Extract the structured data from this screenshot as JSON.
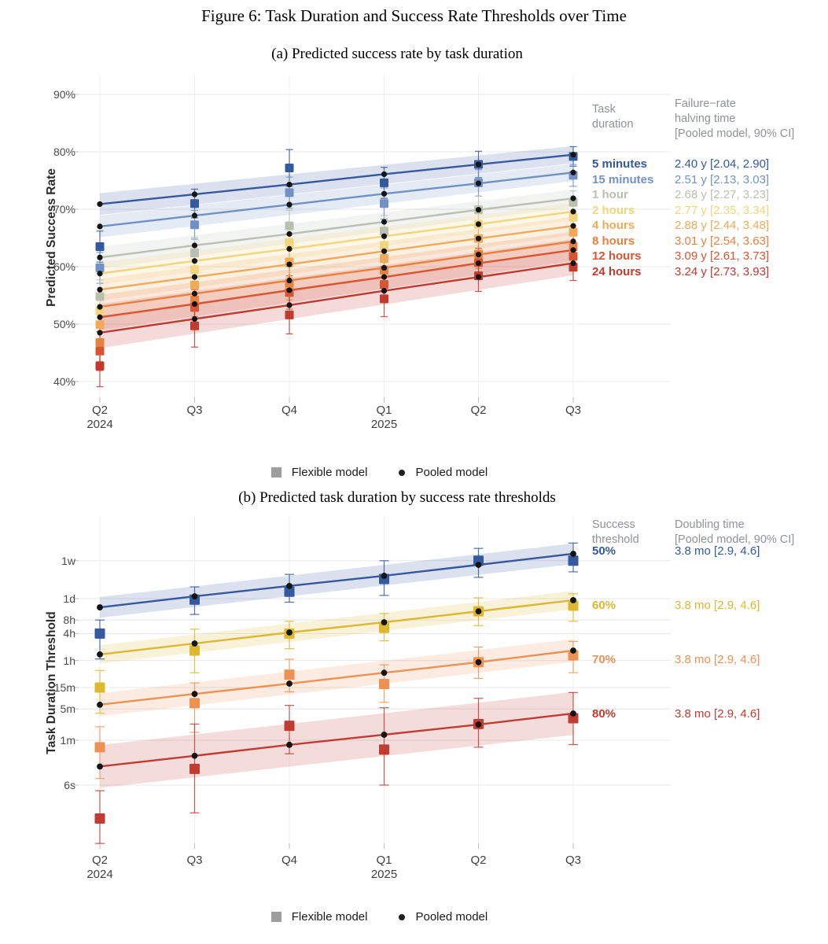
{
  "figure": {
    "title": "Figure 6: Task Duration and Success Rate Thresholds over Time"
  },
  "models_legend": [
    {
      "label": "Flexible model",
      "marker": "square",
      "color": "#9e9e9e"
    },
    {
      "label": "Pooled model",
      "marker": "dot",
      "color": "#1f1f1f"
    }
  ],
  "chart_data": [
    {
      "type": "line",
      "title": "(a) Predicted success rate by task duration",
      "ylabel": "Predicted Success Rate",
      "scale": "linear",
      "grid": true,
      "legend_position": "right",
      "x_ticks": [
        {
          "label": "Q2",
          "year": "2024"
        },
        {
          "label": "Q3",
          "year": ""
        },
        {
          "label": "Q4",
          "year": ""
        },
        {
          "label": "Q1",
          "year": "2025"
        },
        {
          "label": "Q2",
          "year": ""
        },
        {
          "label": "Q3",
          "year": ""
        }
      ],
      "y_ticks": [
        {
          "label": "90%",
          "value": 90
        },
        {
          "label": "80%",
          "value": 80
        },
        {
          "label": "70%",
          "value": 70
        },
        {
          "label": "60%",
          "value": 60
        },
        {
          "label": "50%",
          "value": 50
        },
        {
          "label": "40%",
          "value": 40
        }
      ],
      "ylim": [
        38,
        92
      ],
      "legend_title_lines": [
        "Task",
        "duration"
      ],
      "value_title_lines": [
        "Failure−rate",
        "halving time",
        "[Pooled model, 90% CI]"
      ],
      "series": [
        {
          "label": "5 minutes",
          "ci_text": "2.40 y [2.04, 2.90]",
          "color": "#35599e",
          "pooled": [
            70.9,
            72.6,
            74.3,
            76.1,
            77.8,
            79.5
          ],
          "flexible": [
            63.5,
            71.0,
            77.2,
            74.6,
            77.8,
            79.2
          ],
          "flex_err": [
            2.7,
            2.5,
            3.2,
            2.7,
            2.3,
            1.7
          ],
          "band_hw": [
            1.9,
            1.5
          ]
        },
        {
          "label": "15 minutes",
          "ci_text": "2.51 y [2.13, 3.03]",
          "color": "#7191c6",
          "pooled": [
            67.0,
            68.9,
            70.8,
            72.7,
            74.5,
            76.4
          ],
          "flexible": [
            59.8,
            67.3,
            72.9,
            71.0,
            74.6,
            75.9
          ],
          "flex_err": [
            2.7,
            2.5,
            2.7,
            2.7,
            2.3,
            1.9
          ],
          "band_hw": [
            1.9,
            1.5
          ]
        },
        {
          "label": "1 hour",
          "ci_text": "2.68 y [2.27, 3.23]",
          "color": "#b9c0b2",
          "pooled": [
            61.6,
            63.7,
            65.7,
            67.8,
            69.9,
            71.9
          ],
          "flexible": [
            54.8,
            62.4,
            67.1,
            66.2,
            69.9,
            71.2
          ],
          "flex_err": [
            2.9,
            2.7,
            2.7,
            2.7,
            2.4,
            2.0
          ],
          "band_hw": [
            1.9,
            1.5
          ]
        },
        {
          "label": "2 hours",
          "ci_text": "2.77 y [2.35, 3.34]",
          "color": "#f2d57c",
          "pooled": [
            58.8,
            61.0,
            63.1,
            65.3,
            67.4,
            69.6
          ],
          "flexible": [
            52.3,
            59.5,
            64.2,
            63.7,
            67.4,
            68.6
          ],
          "flex_err": [
            2.9,
            2.7,
            2.7,
            2.7,
            2.4,
            2.0
          ],
          "band_hw": [
            1.9,
            1.5
          ]
        },
        {
          "label": "4 hours",
          "ci_text": "2.88 y [2.44, 3.48]",
          "color": "#f0aa5a",
          "pooled": [
            56.0,
            58.2,
            60.4,
            62.7,
            64.9,
            67.1
          ],
          "flexible": [
            49.9,
            56.8,
            60.8,
            61.4,
            64.9,
            66.0
          ],
          "flex_err": [
            3.1,
            2.9,
            2.7,
            2.7,
            2.4,
            2.0
          ],
          "band_hw": [
            1.9,
            1.6
          ]
        },
        {
          "label": "8 hours",
          "ci_text": "3.01 y [2.54, 3.63]",
          "color": "#e8813f",
          "pooled": [
            53.0,
            55.3,
            57.6,
            59.8,
            62.1,
            64.4
          ],
          "flexible": [
            46.8,
            54.2,
            57.1,
            59.4,
            62.2,
            63.5
          ],
          "flex_err": [
            3.3,
            2.9,
            2.9,
            2.7,
            2.5,
            2.1
          ],
          "band_hw": [
            2.1,
            1.7
          ]
        },
        {
          "label": "12 hours",
          "ci_text": "3.09 y [2.61, 3.73]",
          "color": "#d65535",
          "pooled": [
            51.2,
            53.5,
            55.9,
            58.2,
            60.6,
            62.9
          ],
          "flexible": [
            45.3,
            52.9,
            55.5,
            56.9,
            60.7,
            61.8
          ],
          "flex_err": [
            3.4,
            3.1,
            2.9,
            2.8,
            2.5,
            2.2
          ],
          "band_hw": [
            2.3,
            1.9
          ]
        },
        {
          "label": "24 hours",
          "ci_text": "3.24 y [2.73, 3.93]",
          "color": "#c03a2e",
          "pooled": [
            48.5,
            50.9,
            53.3,
            55.8,
            58.2,
            60.6
          ],
          "flexible": [
            42.7,
            49.7,
            51.6,
            54.4,
            58.4,
            59.9
          ],
          "flex_err": [
            3.6,
            3.7,
            3.3,
            3.1,
            2.7,
            2.3
          ],
          "band_hw": [
            2.7,
            2.1
          ]
        }
      ]
    },
    {
      "type": "line",
      "title": "(b) Predicted task duration by success rate thresholds",
      "ylabel": "Task Duration Threshold",
      "scale": "log-time",
      "grid": true,
      "legend_position": "right",
      "x_ticks": [
        {
          "label": "Q2",
          "year": "2024"
        },
        {
          "label": "Q3",
          "year": ""
        },
        {
          "label": "Q4",
          "year": ""
        },
        {
          "label": "Q1",
          "year": "2025"
        },
        {
          "label": "Q2",
          "year": ""
        },
        {
          "label": "Q3",
          "year": ""
        }
      ],
      "y_ticks": [
        {
          "label": "1w",
          "minutes": 10080
        },
        {
          "label": "1d",
          "minutes": 1440
        },
        {
          "label": "8h",
          "minutes": 480
        },
        {
          "label": "4h",
          "minutes": 240
        },
        {
          "label": "1h",
          "minutes": 60
        },
        {
          "label": "15m",
          "minutes": 15
        },
        {
          "label": "5m",
          "minutes": 5
        },
        {
          "label": "1m",
          "minutes": 1
        },
        {
          "label": "6s",
          "minutes": 0.1
        }
      ],
      "legend_title_lines": [
        "Success",
        "threshold"
      ],
      "value_title_lines": [
        "Doubling time",
        "[Pooled model, 90% CI]"
      ],
      "series": [
        {
          "label": "50%",
          "ci_text": "3.8 mo [2.9, 4.6]",
          "color": "#35599e",
          "pooled_minutes": [
            920,
            1620,
            2760,
            4650,
            8170,
            14400
          ],
          "flexible_minutes": [
            240,
            1370,
            2050,
            3940,
            10080,
            10080
          ],
          "flex_err_minutes": [
            [
              65,
              480
            ],
            [
              640,
              2630
            ],
            [
              1200,
              5000
            ],
            [
              1700,
              10080
            ],
            [
              4300,
              19000
            ],
            [
              5700,
              25000
            ]
          ],
          "band_factor": 1.7
        },
        {
          "label": "60%",
          "ci_text": "3.8 mo [2.9, 4.6]",
          "color": "#dcb82e",
          "pooled_minutes": [
            82,
            144,
            253,
            427,
            750,
            1330
          ],
          "flexible_minutes": [
            15,
            100,
            240,
            320,
            750,
            1000
          ],
          "flex_err_minutes": [
            [
              4,
              36
            ],
            [
              32,
              300
            ],
            [
              110,
              450
            ],
            [
              165,
              670
            ],
            [
              360,
              1500
            ],
            [
              450,
              1850
            ]
          ],
          "band_factor": 1.6
        },
        {
          "label": "70%",
          "ci_text": "3.8 mo [2.9, 4.6]",
          "color": "#ee9254",
          "pooled_minutes": [
            6.2,
            10.8,
            18.3,
            32,
            55,
            100
          ],
          "flexible_minutes": [
            0.7,
            6.7,
            29,
            18,
            55,
            78
          ],
          "flex_err_minutes": [
            [
              0.14,
              2.0
            ],
            [
              1.5,
              19
            ],
            [
              12,
              64
            ],
            [
              7,
              48
            ],
            [
              24,
              120
            ],
            [
              32,
              160
            ]
          ],
          "band_factor": 1.8
        },
        {
          "label": "80%",
          "ci_text": "3.8 mo [2.9, 4.6]",
          "color": "#c23b33",
          "pooled_minutes": [
            0.26,
            0.45,
            0.79,
            1.33,
            2.24,
            3.95
          ],
          "flexible_minutes": [
            0.018,
            0.23,
            2.1,
            0.62,
            2.3,
            3.1
          ],
          "flex_err_minutes": [
            [
              0.005,
              0.075
            ],
            [
              0.024,
              2.3
            ],
            [
              0.5,
              6.0
            ],
            [
              0.1,
              5.3
            ],
            [
              0.7,
              8.6
            ],
            [
              0.8,
              11.6
            ]
          ],
          "band_factor": 3.0
        }
      ]
    }
  ]
}
